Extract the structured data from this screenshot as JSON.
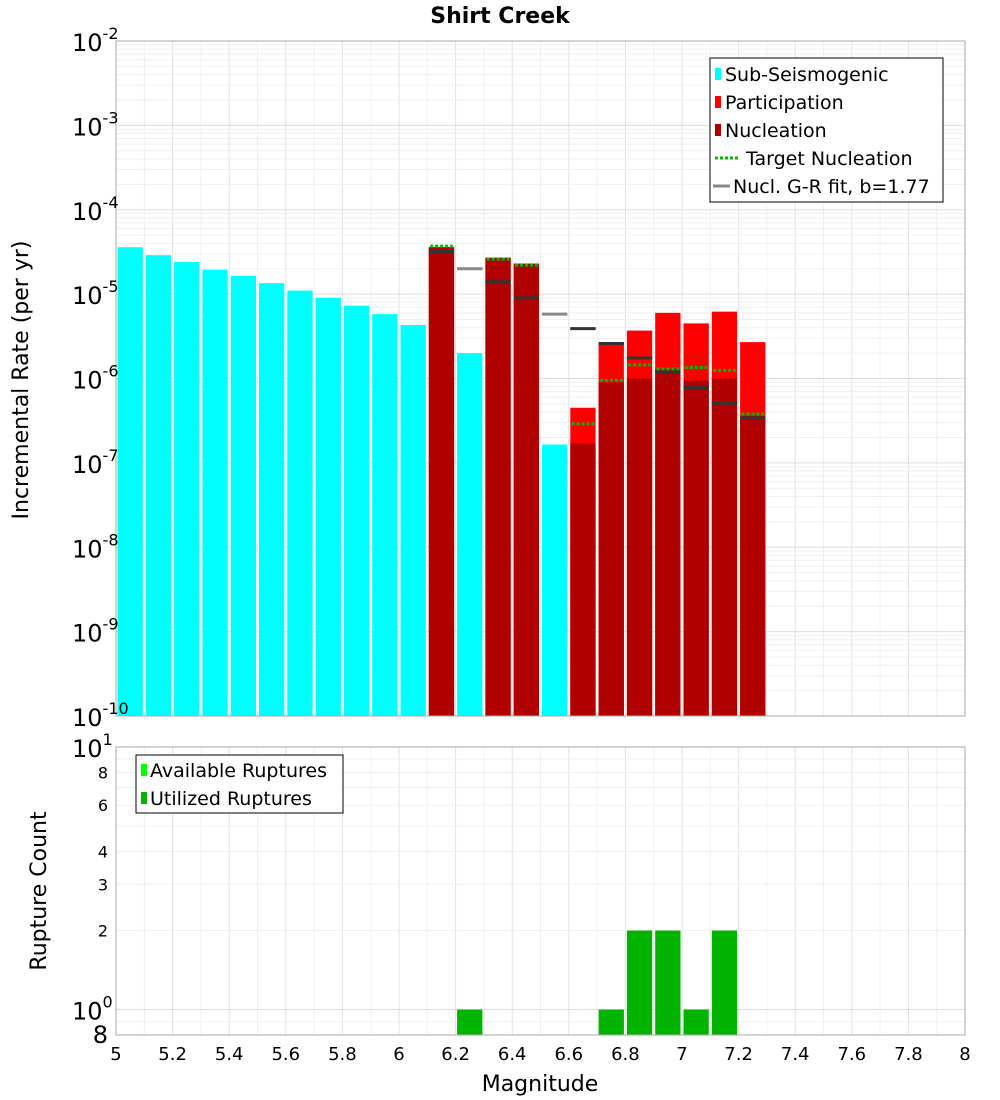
{
  "chart_data": [
    {
      "panel": "top",
      "type": "bar",
      "title": "Shirt Creek",
      "xlabel": "Magnitude",
      "ylabel": "Incremental Rate (per yr)",
      "yscale": "log",
      "ylim": [
        1e-10,
        0.01
      ],
      "xlim": [
        5,
        8
      ],
      "x_ticks": [
        "5",
        "5.2",
        "5.4",
        "5.6",
        "5.8",
        "6",
        "6.2",
        "6.4",
        "6.6",
        "6.8",
        "7",
        "7.2",
        "7.4",
        "7.6",
        "7.8",
        "8"
      ],
      "y_decades": [
        {
          "base": "10",
          "exp": "-10",
          "value": 1e-10
        },
        {
          "base": "10",
          "exp": "-9",
          "value": 1e-09
        },
        {
          "base": "10",
          "exp": "-8",
          "value": 1e-08
        },
        {
          "base": "10",
          "exp": "-7",
          "value": 1e-07
        },
        {
          "base": "10",
          "exp": "-6",
          "value": 1e-06
        },
        {
          "base": "10",
          "exp": "-5",
          "value": 1e-05
        },
        {
          "base": "10",
          "exp": "-4",
          "value": 0.0001
        },
        {
          "base": "10",
          "exp": "-3",
          "value": 0.001
        },
        {
          "base": "10",
          "exp": "-2",
          "value": 0.01
        }
      ],
      "bin_width": 0.1,
      "legend": {
        "position": "top-right",
        "entries": [
          {
            "label": "Sub-Seismogenic",
            "color": "#00ffff",
            "style": "bar"
          },
          {
            "label": "Participation",
            "color": "#ff0000",
            "style": "bar"
          },
          {
            "label": "Nucleation",
            "color": "#b00000",
            "style": "bar"
          },
          {
            "label": "Target Nucleation",
            "color": "#00bb00",
            "style": "dotted"
          },
          {
            "label": "Nucl. G-R fit, b=1.77",
            "color": "#888888",
            "style": "line"
          }
        ]
      },
      "series": [
        {
          "name": "Sub-Seismogenic",
          "color": "#00ffff",
          "x": [
            5.05,
            5.15,
            5.25,
            5.35,
            5.45,
            5.55,
            5.65,
            5.75,
            5.85,
            5.95,
            6.05,
            6.25,
            6.55
          ],
          "values": [
            3.6e-05,
            2.9e-05,
            2.4e-05,
            1.95e-05,
            1.65e-05,
            1.35e-05,
            1.1e-05,
            9e-06,
            7.3e-06,
            5.8e-06,
            4.3e-06,
            2e-06,
            1.65e-07
          ]
        },
        {
          "name": "Participation",
          "color": "#ff0000",
          "x": [
            6.15,
            6.35,
            6.45,
            6.65,
            6.75,
            6.85,
            6.95,
            7.05,
            7.15,
            7.25
          ],
          "values": [
            3.6e-05,
            2.7e-05,
            2.3e-05,
            4.5e-07,
            2.5e-06,
            3.7e-06,
            6e-06,
            4.5e-06,
            6.2e-06,
            2.7e-06
          ]
        },
        {
          "name": "Nucleation",
          "color": "#b00000",
          "x": [
            6.15,
            6.35,
            6.45,
            6.65,
            6.75,
            6.85,
            6.95,
            7.05,
            7.15,
            7.25
          ],
          "values": [
            3.6e-05,
            2.7e-05,
            2.3e-05,
            1.7e-07,
            9e-07,
            1e-06,
            1.3e-06,
            9.5e-07,
            1e-06,
            3.6e-07
          ]
        },
        {
          "name": "Target Nucleation",
          "color": "#00bb00",
          "x": [
            6.15,
            6.35,
            6.45,
            6.65,
            6.75,
            6.85,
            6.95,
            7.05,
            7.15,
            7.25
          ],
          "values": [
            3.7e-05,
            2.6e-05,
            2.2e-05,
            2.9e-07,
            9.5e-07,
            1.45e-06,
            1.3e-06,
            1.35e-06,
            1.25e-06,
            3.8e-07
          ]
        },
        {
          "name": "Nucl. G-R fit, b=1.77",
          "color": "#888888",
          "x": [
            6.15,
            6.25,
            6.35,
            6.45,
            6.55,
            6.65,
            6.75,
            6.85,
            6.95,
            7.05,
            7.15,
            7.25
          ],
          "values": [
            3.2e-05,
            2e-05,
            1.4e-05,
            9e-06,
            5.8e-06,
            3.9e-06,
            2.6e-06,
            1.75e-06,
            1.2e-06,
            7.8e-07,
            5.1e-07,
            3.4e-07
          ]
        }
      ]
    },
    {
      "panel": "bottom",
      "type": "bar",
      "xlabel": "Magnitude",
      "ylabel": "Rupture Count",
      "yscale": "log",
      "ylim": [
        0.8,
        10
      ],
      "xlim": [
        5,
        8
      ],
      "y_decades": [
        {
          "base": "10",
          "exp": "0",
          "value": 1
        },
        {
          "base": "10",
          "exp": "1",
          "value": 10
        }
      ],
      "y_minor_ticks": [
        {
          "label": "8",
          "value": 0.8
        },
        {
          "label": "2",
          "value": 2
        },
        {
          "label": "3",
          "value": 3
        },
        {
          "label": "4",
          "value": 4
        },
        {
          "label": "6",
          "value": 6
        },
        {
          "label": "8",
          "value": 8
        }
      ],
      "legend": {
        "position": "top-left",
        "entries": [
          {
            "label": "Available Ruptures",
            "color": "#00ff00",
            "style": "bar"
          },
          {
            "label": "Utilized Ruptures",
            "color": "#00b400",
            "style": "bar"
          }
        ]
      },
      "series": [
        {
          "name": "Utilized Ruptures",
          "color": "#00b400",
          "x": [
            6.25,
            6.75,
            6.85,
            6.95,
            7.05,
            7.15
          ],
          "values": [
            1,
            1,
            2,
            2,
            1,
            2
          ]
        }
      ]
    }
  ]
}
